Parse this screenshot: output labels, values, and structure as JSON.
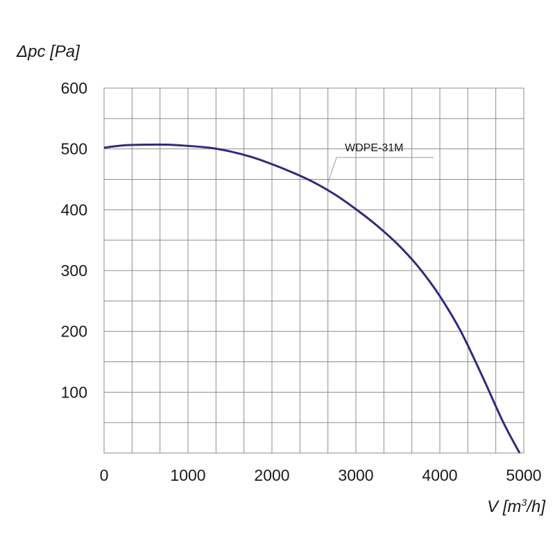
{
  "chart_data": {
    "type": "line",
    "ylabel": "Δpc [Pa]",
    "xlabel_prefix": "V [m",
    "xlabel_sup": "3",
    "xlabel_suffix": "/h]",
    "xlim": [
      0,
      5000
    ],
    "ylim": [
      0,
      600
    ],
    "x_ticks": [
      0,
      1000,
      2000,
      3000,
      4000,
      5000
    ],
    "y_ticks": [
      100,
      200,
      300,
      400,
      500,
      600
    ],
    "grid": true,
    "colors": {
      "series": "#2e2a7c",
      "grid": "#8c8c8c",
      "label_line": "#999999"
    },
    "series": [
      {
        "name": "WDPE-31M",
        "x": [
          0,
          250,
          500,
          750,
          1000,
          1250,
          1500,
          1750,
          2000,
          2250,
          2500,
          2750,
          3000,
          3250,
          3500,
          3750,
          4000,
          4250,
          4500,
          4750,
          4950
        ],
        "y": [
          502,
          506,
          507,
          507,
          505,
          502,
          496,
          487,
          475,
          461,
          445,
          425,
          401,
          374,
          343,
          305,
          258,
          200,
          128,
          52,
          0
        ]
      }
    ],
    "annotation": {
      "series_index": 0,
      "text": "WDPE-31M",
      "anchor_x": 2600
    }
  }
}
